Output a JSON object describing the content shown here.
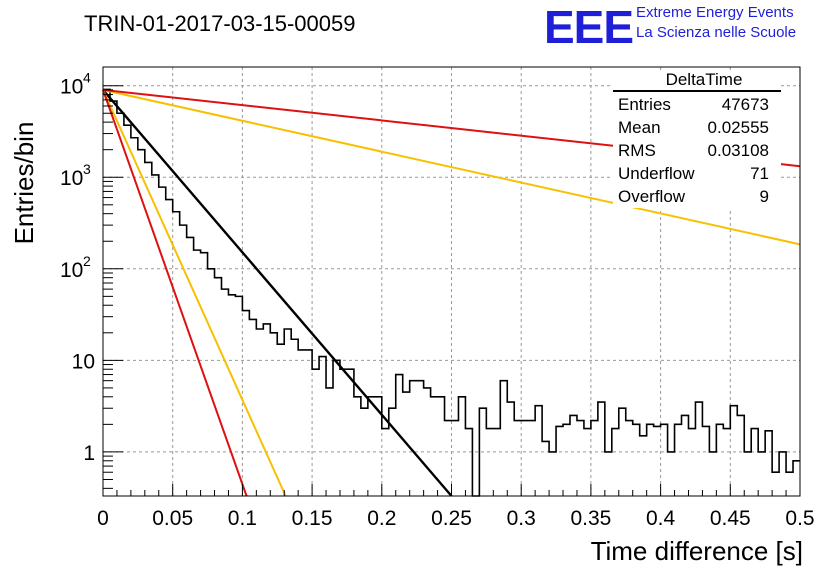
{
  "header": {
    "title": "TRIN-01-2017-03-15-00059",
    "logo_text": "EEE",
    "logo_line1": "Extreme Energy Events",
    "logo_line2": "La Scienza nelle Scuole",
    "logo_color": "#1f1fd8"
  },
  "stats_box": {
    "name": "DeltaTime",
    "rows": [
      {
        "label": "Entries",
        "value": "47673"
      },
      {
        "label": "Mean",
        "value": "0.02555"
      },
      {
        "label": "RMS",
        "value": "0.03108"
      },
      {
        "label": "Underflow",
        "value": "71"
      },
      {
        "label": "Overflow",
        "value": "9"
      }
    ]
  },
  "chart_data": {
    "type": "line",
    "xlabel": "Time difference [s]",
    "ylabel": "Entries/bin",
    "xlim": [
      0,
      0.5
    ],
    "ylim": [
      0.33,
      16000
    ],
    "yscale": "log",
    "grid": true,
    "x_ticks": [
      0,
      0.05,
      0.1,
      0.15,
      0.2,
      0.25,
      0.3,
      0.35,
      0.4,
      0.45,
      0.5
    ],
    "x_tick_labels": [
      "0",
      "0.05",
      "0.1",
      "0.15",
      "0.2",
      "0.25",
      "0.3",
      "0.35",
      "0.4",
      "0.45",
      "0.5"
    ],
    "y_ticks": [
      {
        "value": 1,
        "base": "1",
        "exp": ""
      },
      {
        "value": 10,
        "base": "10",
        "exp": ""
      },
      {
        "value": 100,
        "base": "10",
        "exp": "2"
      },
      {
        "value": 1000,
        "base": "10",
        "exp": "3"
      },
      {
        "value": 10000,
        "base": "10",
        "exp": "4"
      }
    ],
    "histogram": {
      "bin_width": 0.005,
      "color": "#000000",
      "values": [
        9100,
        6800,
        5000,
        3700,
        2700,
        2000,
        1450,
        1060,
        780,
        570,
        420,
        300,
        220,
        160,
        150,
        100,
        80,
        60,
        52,
        50,
        35,
        28,
        22,
        25,
        20,
        15,
        22,
        17,
        13,
        13,
        8,
        11,
        5,
        10,
        8,
        8,
        4,
        3,
        4,
        4,
        1.8,
        3,
        7,
        4.5,
        6,
        6,
        5,
        4,
        4,
        2.2,
        2.2,
        4,
        1.8,
        0.25,
        3,
        1.8,
        1.8,
        6,
        3.5,
        2.2,
        2.2,
        2.2,
        3.2,
        1.3,
        1.0,
        1.9,
        2.0,
        2.5,
        2.2,
        1.8,
        2.2,
        3.5,
        1.0,
        1.8,
        3.0,
        2.2,
        2.0,
        1.5,
        2.0,
        1.9,
        2.0,
        1.0,
        2.0,
        2.5,
        1.8,
        3.5,
        1.9,
        1.0,
        2.0,
        1.8,
        3.2,
        2.5,
        1.0,
        1.8,
        1.0,
        1.7,
        0.6,
        1.0,
        0.6,
        0.8
      ]
    },
    "fits": [
      {
        "color": "#000000",
        "width": 2.4,
        "x0": 0.0,
        "y0": 9000,
        "x1": 0.25,
        "y1": 0.33
      },
      {
        "color": "#f7c000",
        "width": 2.0,
        "x0": 0.0,
        "y0": 9000,
        "x1": 0.131,
        "y1": 0.33
      },
      {
        "color": "#dd1111",
        "width": 2.0,
        "x0": 0.0,
        "y0": 9000,
        "x1": 0.103,
        "y1": 0.33
      },
      {
        "color": "#f7c000",
        "width": 2.0,
        "x0": 0.0,
        "y0": 9000,
        "x1": 0.5,
        "y1": 185
      },
      {
        "color": "#dd1111",
        "width": 2.0,
        "x0": 0.0,
        "y0": 9000,
        "x1": 0.5,
        "y1": 1320
      }
    ]
  }
}
